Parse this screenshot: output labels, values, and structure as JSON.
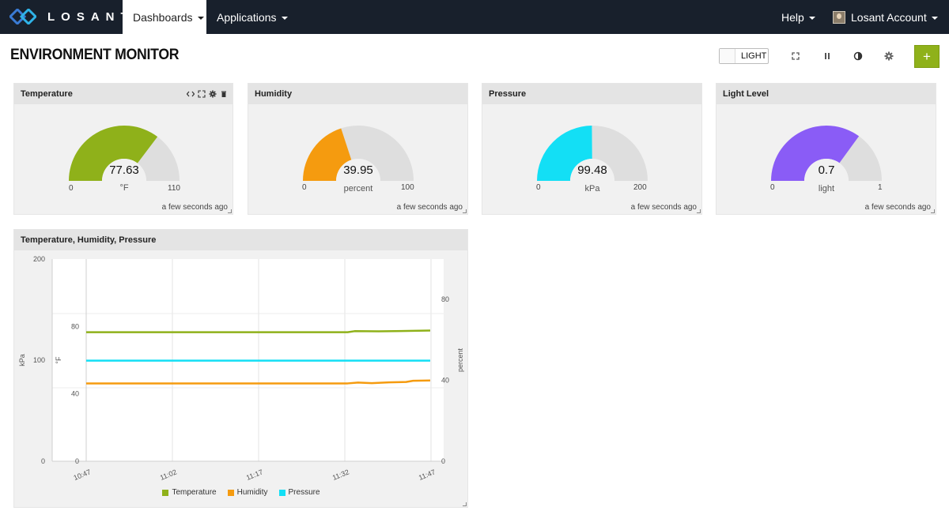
{
  "nav": {
    "brand": "LOSANT",
    "dashboards": "Dashboards",
    "applications": "Applications",
    "help": "Help",
    "account": "Losant Account"
  },
  "dashboard": {
    "title": "ENVIRONMENT MONITOR",
    "theme_toggle": "LIGHT",
    "add_label": "+"
  },
  "gauges": [
    {
      "title": "Temperature",
      "value": "77.63",
      "value_num": 77.63,
      "min": "0",
      "max": "110",
      "min_num": 0,
      "max_num": 110,
      "unit": "°F",
      "color": "#8fb11a",
      "timestamp": "a few seconds ago"
    },
    {
      "title": "Humidity",
      "value": "39.95",
      "value_num": 39.95,
      "min": "0",
      "max": "100",
      "min_num": 0,
      "max_num": 100,
      "unit": "percent",
      "color": "#f59b0f",
      "timestamp": "a few seconds ago"
    },
    {
      "title": "Pressure",
      "value": "99.48",
      "value_num": 99.48,
      "min": "0",
      "max": "200",
      "min_num": 0,
      "max_num": 200,
      "unit": "kPa",
      "color": "#13dff5",
      "timestamp": "a few seconds ago"
    },
    {
      "title": "Light Level",
      "value": "0.7",
      "value_num": 0.7,
      "min": "0",
      "max": "1",
      "min_num": 0,
      "max_num": 1,
      "unit": "light",
      "color": "#8a5cf6",
      "timestamp": "a few seconds ago"
    }
  ],
  "chart_block": {
    "title": "Temperature, Humidity, Pressure"
  },
  "chart_data": {
    "type": "line",
    "x": [
      "10:47",
      "11:02",
      "11:17",
      "11:32",
      "11:47"
    ],
    "grid": true,
    "legend_position": "bottom",
    "axes": {
      "kpa": {
        "label": "kPa",
        "ticks": [
          "200",
          "100",
          "0"
        ],
        "range": [
          0,
          200
        ]
      },
      "fahrenheit": {
        "label": "°F",
        "ticks": [
          "80",
          "40",
          "0"
        ],
        "range": [
          0,
          120
        ]
      },
      "percent": {
        "label": "percent",
        "ticks": [
          "80",
          "40",
          "0"
        ],
        "range": [
          0,
          100
        ]
      }
    },
    "series": [
      {
        "name": "Temperature",
        "axis": "fahrenheit",
        "color": "#8fb11a",
        "values": [
          [
            0,
            76.6
          ],
          [
            0.2,
            76.6
          ],
          [
            0.4,
            76.6
          ],
          [
            0.6,
            76.6
          ],
          [
            0.76,
            76.6
          ],
          [
            0.78,
            77.2
          ],
          [
            0.85,
            77.1
          ],
          [
            0.95,
            77.4
          ],
          [
            1.0,
            77.6
          ]
        ]
      },
      {
        "name": "Humidity",
        "axis": "percent",
        "color": "#f59b0f",
        "values": [
          [
            0,
            38.5
          ],
          [
            0.2,
            38.5
          ],
          [
            0.4,
            38.5
          ],
          [
            0.6,
            38.5
          ],
          [
            0.76,
            38.5
          ],
          [
            0.79,
            38.9
          ],
          [
            0.83,
            38.6
          ],
          [
            0.88,
            39.0
          ],
          [
            0.93,
            39.2
          ],
          [
            0.95,
            39.8
          ],
          [
            1.0,
            39.95
          ]
        ]
      },
      {
        "name": "Pressure",
        "axis": "kpa",
        "color": "#13dff5",
        "values": [
          [
            0,
            99.5
          ],
          [
            0.25,
            99.5
          ],
          [
            0.5,
            99.5
          ],
          [
            0.75,
            99.5
          ],
          [
            1.0,
            99.5
          ]
        ]
      }
    ]
  }
}
